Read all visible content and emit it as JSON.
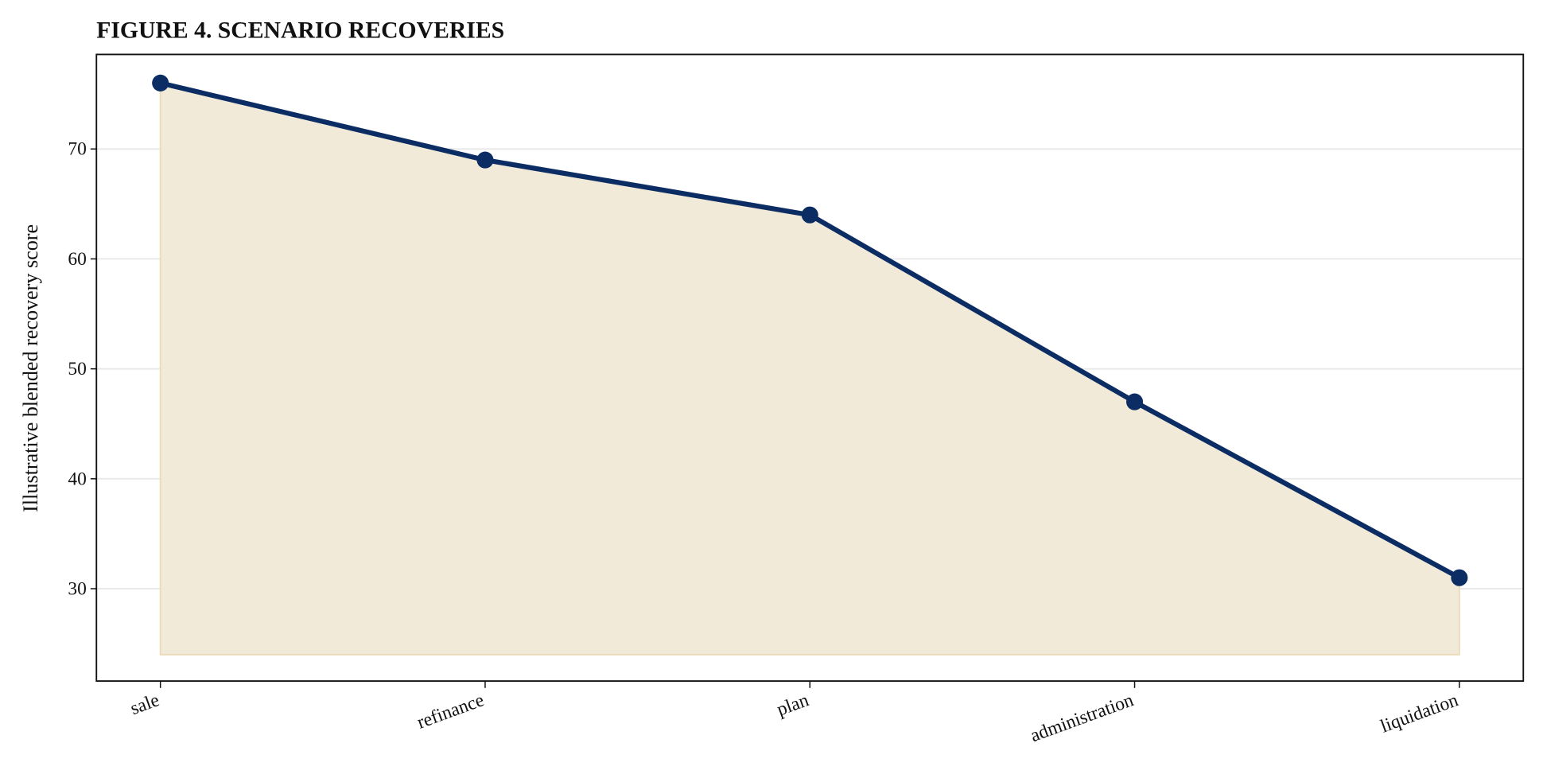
{
  "chart_data": {
    "type": "line",
    "title": "FIGURE 4. SCENARIO RECOVERIES",
    "y_label": "Illustrative blended recovery score",
    "categories": [
      "sale",
      "refinance",
      "plan",
      "administration",
      "liquidation"
    ],
    "values": [
      76,
      69,
      64,
      47,
      31
    ],
    "color": "#0b2d63",
    "fill_color": "#f2ead9",
    "baseline": 24,
    "ylim": [
      21.6,
      78.6
    ],
    "yticks": [
      30,
      40,
      50,
      60,
      70
    ],
    "grid": true
  }
}
